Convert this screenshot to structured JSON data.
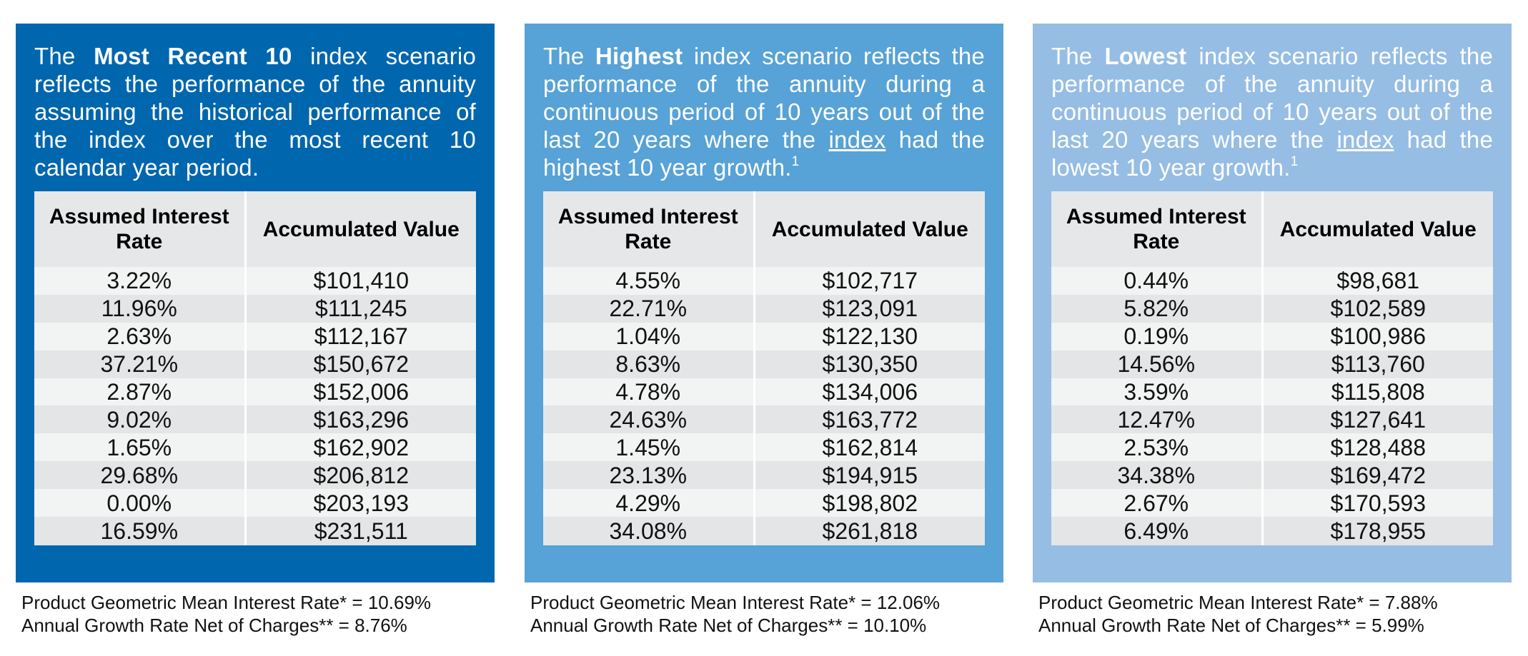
{
  "headers": {
    "rate": "Assumed Interest Rate",
    "value": "Accumulated Value"
  },
  "scenarios": [
    {
      "intro": {
        "p1": "The ",
        "bold": "Most Recent 10",
        "p2": " index scenario reflects the performance of the annuity assuming the historical performance of the index over the most recent 10 calendar year period.",
        "link": "",
        "p3": "",
        "sup": ""
      },
      "rows": [
        {
          "rate": "3.22%",
          "value": "$101,410"
        },
        {
          "rate": "11.96%",
          "value": "$111,245"
        },
        {
          "rate": "2.63%",
          "value": "$112,167"
        },
        {
          "rate": "37.21%",
          "value": "$150,672"
        },
        {
          "rate": "2.87%",
          "value": "$152,006"
        },
        {
          "rate": "9.02%",
          "value": "$163,296"
        },
        {
          "rate": "1.65%",
          "value": "$162,902"
        },
        {
          "rate": "29.68%",
          "value": "$206,812"
        },
        {
          "rate": "0.00%",
          "value": "$203,193"
        },
        {
          "rate": "16.59%",
          "value": "$231,511"
        }
      ],
      "footer": {
        "mean": "Product Geometric Mean Interest Rate* = 10.69%",
        "growth": "Annual Growth Rate Net of Charges** = 8.76%"
      }
    },
    {
      "intro": {
        "p1": "The ",
        "bold": "Highest",
        "p2": " index scenario reflects the performance of the annuity during a continuous period of 10 years out of the last 20 years where the ",
        "link": "index",
        "p3": " had the highest 10 year growth.",
        "sup": "1"
      },
      "rows": [
        {
          "rate": "4.55%",
          "value": "$102,717"
        },
        {
          "rate": "22.71%",
          "value": "$123,091"
        },
        {
          "rate": "1.04%",
          "value": "$122,130"
        },
        {
          "rate": "8.63%",
          "value": "$130,350"
        },
        {
          "rate": "4.78%",
          "value": "$134,006"
        },
        {
          "rate": "24.63%",
          "value": "$163,772"
        },
        {
          "rate": "1.45%",
          "value": "$162,814"
        },
        {
          "rate": "23.13%",
          "value": "$194,915"
        },
        {
          "rate": "4.29%",
          "value": "$198,802"
        },
        {
          "rate": "34.08%",
          "value": "$261,818"
        }
      ],
      "footer": {
        "mean": "Product Geometric Mean Interest Rate* = 12.06%",
        "growth": "Annual Growth Rate Net of Charges** = 10.10%"
      }
    },
    {
      "intro": {
        "p1": "The ",
        "bold": "Lowest",
        "p2": " index scenario reflects the performance of the annuity during a continuous period of 10 years out of the last 20 years where the ",
        "link": "index",
        "p3": " had the lowest 10 year growth.",
        "sup": "1"
      },
      "rows": [
        {
          "rate": "0.44%",
          "value": "$98,681"
        },
        {
          "rate": "5.82%",
          "value": "$102,589"
        },
        {
          "rate": "0.19%",
          "value": "$100,986"
        },
        {
          "rate": "14.56%",
          "value": "$113,760"
        },
        {
          "rate": "3.59%",
          "value": "$115,808"
        },
        {
          "rate": "12.47%",
          "value": "$127,641"
        },
        {
          "rate": "2.53%",
          "value": "$128,488"
        },
        {
          "rate": "34.38%",
          "value": "$169,472"
        },
        {
          "rate": "2.67%",
          "value": "$170,593"
        },
        {
          "rate": "6.49%",
          "value": "$178,955"
        }
      ],
      "footer": {
        "mean": "Product Geometric Mean Interest Rate* = 7.88%",
        "growth": "Annual Growth Rate Net of Charges** = 5.99%"
      }
    }
  ]
}
